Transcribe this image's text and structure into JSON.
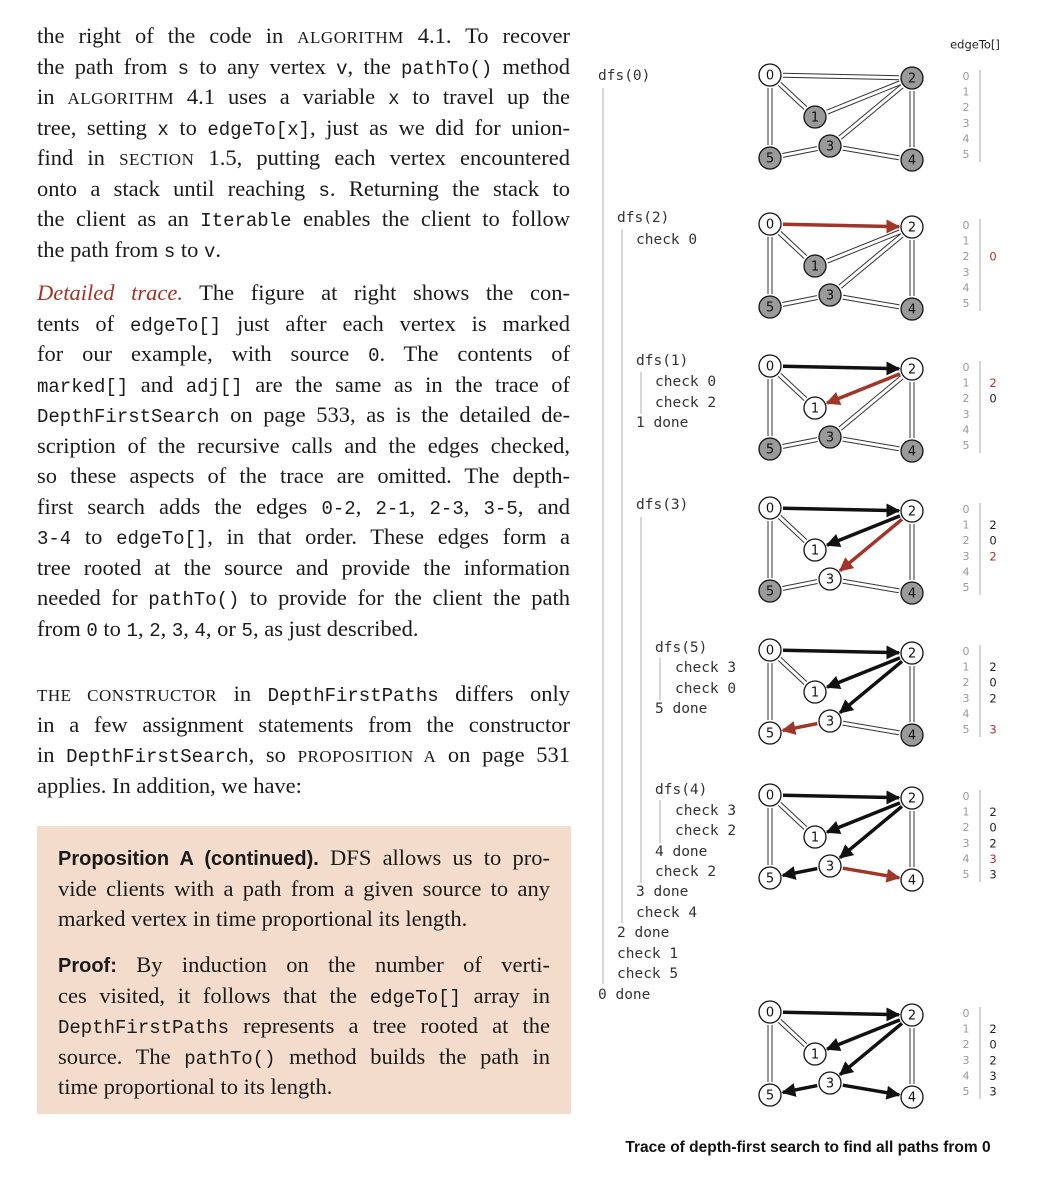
{
  "text": {
    "paragraphs": [
      [
        [
          "the right of the code  in ",
          {
            "sc": "ALGORITHM"
          },
          " 4.1. To recover"
        ],
        [
          "the path from ",
          {
            "code": "s"
          },
          " to any vertex ",
          {
            "code": "v"
          },
          ", the ",
          {
            "code": "pathTo()"
          },
          " method"
        ],
        [
          "in ",
          {
            "sc": "ALGORITHM"
          },
          " 4.1 uses a variable ",
          {
            "code": "x"
          },
          " to travel up the"
        ],
        [
          "tree, setting ",
          {
            "code": "x"
          },
          " to ",
          {
            "code": "edgeTo[x]"
          },
          ", just as we did for union-"
        ],
        [
          "find in ",
          {
            "sc": "SECTION"
          },
          " 1.5, putting each vertex encountered"
        ],
        [
          "onto a stack until reaching ",
          {
            "code": "s"
          },
          ". Returning the stack to"
        ],
        [
          "the client as an ",
          {
            "code": "Iterable"
          },
          " enables the client to follow"
        ],
        [
          "the path from ",
          {
            "code": "s"
          },
          " to ",
          {
            "code": "v"
          },
          "."
        ]
      ],
      [
        [
          {
            "em": "Detailed trace."
          },
          " The figure at right shows the con-"
        ],
        [
          "tents of ",
          {
            "code": "edgeTo[]"
          },
          " just after each vertex is marked"
        ],
        [
          "for our example, with source ",
          {
            "code": "0"
          },
          ". The contents of"
        ],
        [
          {
            "code": "marked[]"
          },
          " and ",
          {
            "code": "adj[]"
          },
          " are the same as in the trace of"
        ],
        [
          {
            "code": "DepthFirstSearch"
          },
          " on page 533, as is the detailed de-"
        ],
        [
          "scription of the recursive calls and the edges checked,"
        ],
        [
          "so these aspects of the trace are omitted. The depth-"
        ],
        [
          "first search adds the edges ",
          {
            "code": "0-2"
          },
          ", ",
          {
            "code": "2-1"
          },
          ", ",
          {
            "code": "2-3"
          },
          ", ",
          {
            "code": "3-5"
          },
          ", and"
        ],
        [
          {
            "code": "3-4"
          },
          " to ",
          {
            "code": "edgeTo[]"
          },
          ", in that order. These edges form a"
        ],
        [
          "tree rooted at the source and provide the information"
        ],
        [
          "needed for ",
          {
            "code": "pathTo()"
          },
          " to provide for the client the path"
        ],
        [
          "from ",
          {
            "code": "0"
          },
          " to ",
          {
            "code": "1"
          },
          ", ",
          {
            "code": "2"
          },
          ", ",
          {
            "code": "3"
          },
          ", ",
          {
            "code": "4"
          },
          ", or ",
          {
            "code": "5"
          },
          ", as just described."
        ]
      ],
      [
        [
          {
            "sc": "THE CONSTRUCTOR"
          },
          " in ",
          {
            "code": "DepthFirstPaths"
          },
          " differs only"
        ],
        [
          "in a few assignment statements from the constructor"
        ],
        [
          "in ",
          {
            "code": "DepthFirstSearch"
          },
          ", so ",
          {
            "sc": "PROPOSITION A"
          },
          " on page 531"
        ],
        [
          "applies. In addition, we have:"
        ]
      ],
      [
        [
          {
            "b": "Proposition A (continued)."
          },
          " DFS allows us to pro-"
        ],
        [
          "vide clients with a path from a given source to any"
        ],
        [
          "marked vertex in time proportional its length."
        ]
      ],
      [
        [
          {
            "b": "Proof:"
          },
          " By induction on the number of verti-"
        ],
        [
          "ces visited, it follows that the ",
          {
            "code": "edgeTo[]"
          },
          " array in"
        ],
        [
          {
            "code": "DepthFirstPaths"
          },
          " represents a tree rooted at the"
        ],
        [
          "source. The ",
          {
            "code": "pathTo()"
          },
          " method builds the path in"
        ],
        [
          "time proportional to its length."
        ]
      ]
    ]
  },
  "figure": {
    "header": "edgeTo[]",
    "trace": [
      "dfs(0)",
      "dfs(2)",
      "check 0",
      "dfs(1)",
      "check 0",
      "check 2",
      "1 done",
      "dfs(3)",
      "dfs(5)",
      "check 3",
      "check 0",
      "5 done",
      "dfs(4)",
      "check 3",
      "check 2",
      "4 done",
      "check 2",
      "3 done",
      "check 4",
      "2 done",
      "check 1",
      "check 5",
      "0 done"
    ],
    "nodes": [
      "0",
      "1",
      "2",
      "3",
      "4",
      "5"
    ],
    "indices": [
      "0",
      "1",
      "2",
      "3",
      "4",
      "5"
    ],
    "edgeTo": [
      [
        null,
        null,
        null,
        null,
        null,
        null
      ],
      [
        null,
        null,
        0,
        null,
        null,
        null
      ],
      [
        null,
        2,
        0,
        null,
        null,
        null
      ],
      [
        null,
        2,
        0,
        2,
        null,
        null
      ],
      [
        null,
        2,
        0,
        2,
        null,
        3
      ],
      [
        null,
        2,
        0,
        2,
        3,
        3
      ],
      [
        null,
        2,
        0,
        2,
        3,
        3
      ]
    ],
    "caption": "Trace of depth-first search to find all paths from 0"
  }
}
